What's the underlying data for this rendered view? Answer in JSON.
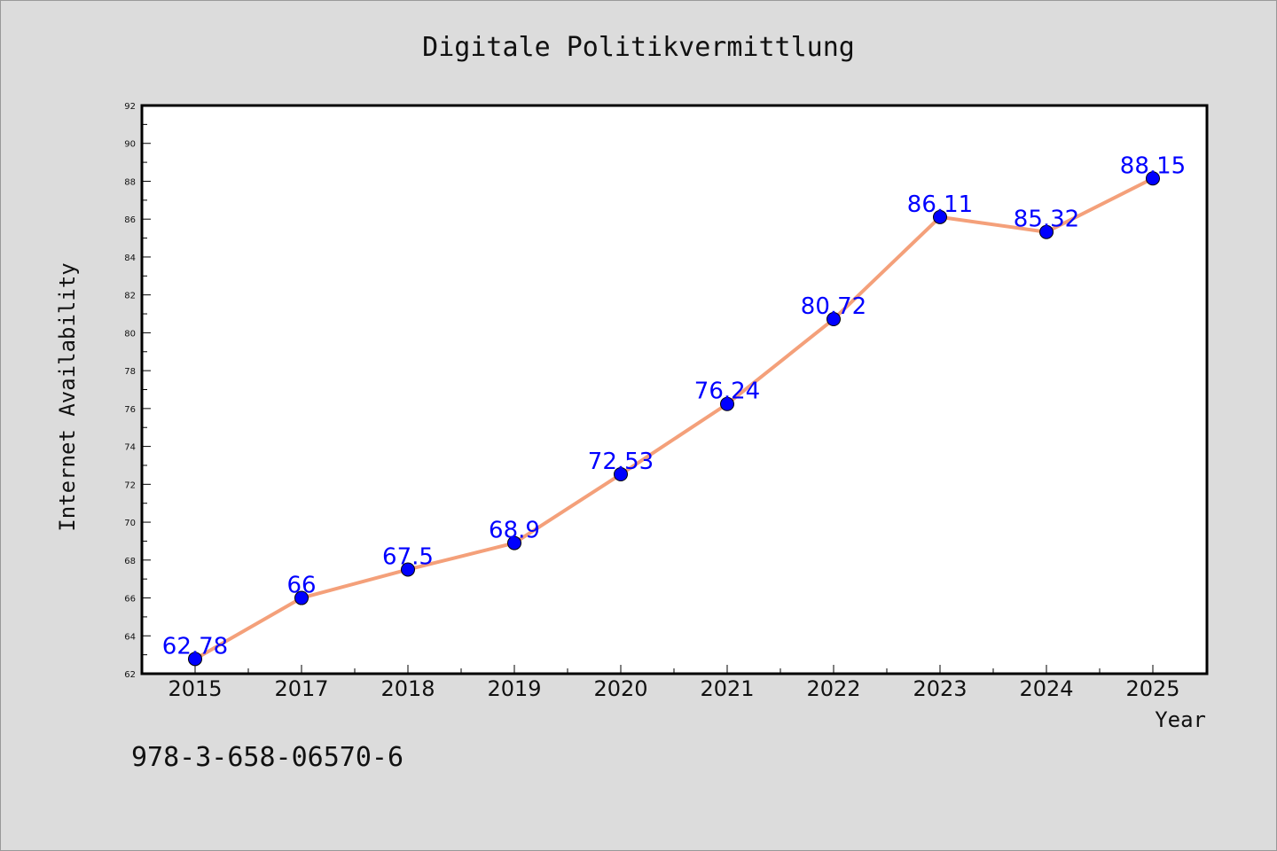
{
  "chart_data": {
    "type": "line",
    "title": "Digitale Politikvermittlung",
    "xlabel": "Year",
    "ylabel": "Internet Availability",
    "x": [
      "2015",
      "2017",
      "2018",
      "2019",
      "2020",
      "2021",
      "2022",
      "2023",
      "2024",
      "2025"
    ],
    "series": [
      {
        "values": [
          62.78,
          66,
          67.5,
          68.9,
          72.53,
          76.24,
          80.72,
          86.11,
          85.32,
          88.15
        ],
        "data_labels": [
          "62.78",
          "66",
          "67.5",
          "68.9",
          "72.53",
          "76.24",
          "80.72",
          "86.11",
          "85.32",
          "88.15"
        ],
        "line_color": "#f4a07a",
        "marker_color": "#0000ff"
      }
    ],
    "ylim": [
      62,
      92
    ],
    "yticks": [
      "62",
      "64",
      "66",
      "68",
      "70",
      "72",
      "74",
      "76",
      "78",
      "80",
      "82",
      "84",
      "86",
      "88",
      "90",
      "92"
    ],
    "grid": false,
    "legend": "none"
  },
  "annotation": "978-3-658-06570-6",
  "colors": {
    "background": "#dcdcdc",
    "plot_background": "#ffffff",
    "data_label": "#0000ff"
  }
}
